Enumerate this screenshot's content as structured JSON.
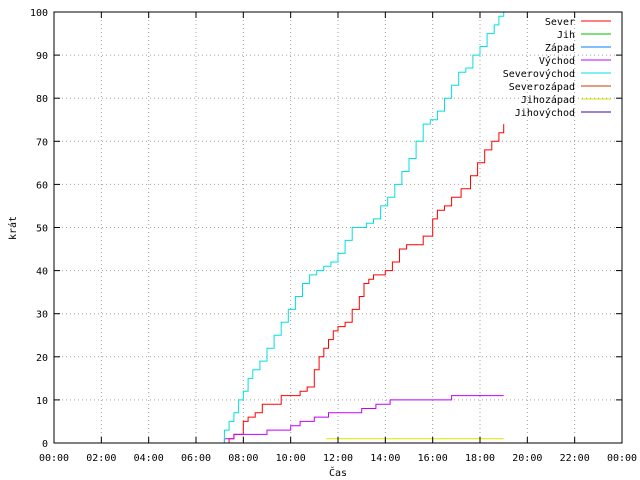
{
  "chart_data": {
    "type": "line",
    "xlabel": "Čas",
    "ylabel": "krát",
    "xlim": [
      0,
      24
    ],
    "ylim": [
      0,
      100
    ],
    "x_ticks": [
      "00:00",
      "02:00",
      "04:00",
      "06:00",
      "08:00",
      "10:00",
      "12:00",
      "14:00",
      "16:00",
      "18:00",
      "20:00",
      "22:00",
      "00:00"
    ],
    "y_ticks": [
      0,
      10,
      20,
      30,
      40,
      50,
      60,
      70,
      80,
      90,
      100
    ],
    "grid": true,
    "legend_position": "top-right",
    "series": [
      {
        "name": "Sever",
        "color": "#ff0000",
        "x": [
          7.17,
          7.4,
          7.6,
          7.8,
          8.0,
          8.2,
          8.5,
          8.8,
          9.2,
          9.6,
          10.0,
          10.4,
          10.7,
          11.0,
          11.2,
          11.4,
          11.6,
          11.8,
          12.0,
          12.3,
          12.6,
          12.9,
          13.1,
          13.3,
          13.5,
          13.7,
          14.0,
          14.3,
          14.6,
          14.9,
          15.2,
          15.6,
          16.0,
          16.2,
          16.5,
          16.8,
          17.2,
          17.6,
          17.9,
          18.2,
          18.5,
          18.8,
          19.0
        ],
        "y": [
          0,
          1,
          2,
          2,
          5,
          6,
          7,
          9,
          9,
          11,
          11,
          12,
          13,
          17,
          20,
          22,
          24,
          26,
          27,
          28,
          31,
          34,
          37,
          38,
          39,
          39,
          40,
          42,
          45,
          46,
          46,
          48,
          52,
          54,
          55,
          57,
          59,
          62,
          65,
          68,
          70,
          72,
          74
        ]
      },
      {
        "name": "Jih",
        "color": "#00c000",
        "x": [],
        "y": []
      },
      {
        "name": "Západ",
        "color": "#0080ff",
        "x": [],
        "y": []
      },
      {
        "name": "Východ",
        "color": "#c000ff",
        "x": [
          7.0,
          7.2,
          7.4,
          7.6,
          8.0,
          8.6,
          9.0,
          9.6,
          10.0,
          10.4,
          11.0,
          11.6,
          12.4,
          13.0,
          13.6,
          14.2,
          15.0,
          15.6,
          16.2,
          16.8,
          17.6,
          18.4,
          19.0
        ],
        "y": [
          0,
          1,
          1,
          2,
          2,
          2,
          3,
          3,
          4,
          5,
          6,
          7,
          7,
          8,
          9,
          10,
          10,
          10,
          10,
          11,
          11,
          11,
          11
        ]
      },
      {
        "name": "Severovýchod",
        "color": "#00e0e0",
        "x": [
          7.0,
          7.2,
          7.4,
          7.6,
          7.8,
          8.0,
          8.2,
          8.4,
          8.7,
          9.0,
          9.3,
          9.6,
          9.9,
          10.2,
          10.5,
          10.8,
          11.1,
          11.4,
          11.7,
          12.0,
          12.3,
          12.6,
          12.9,
          13.2,
          13.5,
          13.8,
          14.1,
          14.4,
          14.7,
          15.0,
          15.3,
          15.6,
          15.9,
          16.2,
          16.5,
          16.8,
          17.1,
          17.4,
          17.7,
          18.0,
          18.3,
          18.6,
          18.8,
          19.0
        ],
        "y": [
          0,
          3,
          5,
          7,
          10,
          12,
          15,
          17,
          19,
          22,
          25,
          28,
          31,
          34,
          37,
          39,
          40,
          41,
          42,
          44,
          47,
          50,
          50,
          51,
          52,
          55,
          57,
          60,
          63,
          66,
          70,
          74,
          75,
          77,
          80,
          83,
          86,
          87,
          90,
          92,
          95,
          97,
          99,
          100
        ]
      },
      {
        "name": "Severozápad",
        "color": "#c04000",
        "x": [],
        "y": []
      },
      {
        "name": "Jihozápad",
        "color": "#e0e000",
        "x": [
          11.5,
          13.0,
          15.0,
          17.0,
          19.0
        ],
        "y": [
          1,
          1,
          1,
          1,
          1
        ]
      },
      {
        "name": "Jihovýchod",
        "color": "#4000a0",
        "x": [],
        "y": []
      }
    ]
  }
}
